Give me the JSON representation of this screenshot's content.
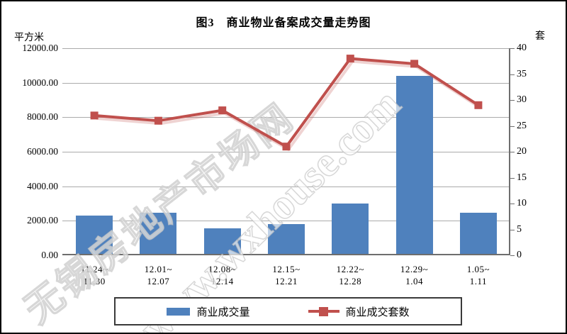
{
  "title": "图3　商业物业备案成交量走势图",
  "left_axis": {
    "unit": "平方米",
    "tick_labels": [
      "12000.00",
      "10000.00",
      "8000.00",
      "6000.00",
      "4000.00",
      "2000.00",
      "0.00"
    ],
    "min": 0,
    "max": 12000
  },
  "right_axis": {
    "unit": "套",
    "tick_labels": [
      "40",
      "35",
      "30",
      "25",
      "20",
      "15",
      "10",
      "5",
      "0"
    ],
    "min": 0,
    "max": 40
  },
  "legend": {
    "items": [
      {
        "label": "商业成交量",
        "type": "bar"
      },
      {
        "label": "商业成交套数",
        "type": "line"
      }
    ]
  },
  "watermark": {
    "text_cn": "无锡房地产市场网",
    "text_en": "www.wxhouse.com"
  },
  "colors": {
    "bar": "#4F81BD",
    "line": "#C0504D",
    "gridline": "#ABABAB",
    "axis": "#6E6E6E",
    "text": "#000000"
  },
  "chart_data": {
    "type": "bar+line",
    "categories": [
      "11.24~\n11.30",
      "12.01~\n12.07",
      "12.08~\n12.14",
      "12.15~\n12.21",
      "12.22~\n12.28",
      "12.29~\n1.04",
      "1.05~\n1.11"
    ],
    "series": [
      {
        "name": "商业成交量",
        "type": "bar",
        "axis": "left",
        "unit": "平方米",
        "color": "#4F81BD",
        "values": [
          2300,
          2450,
          1570,
          1800,
          3000,
          10400,
          2480
        ]
      },
      {
        "name": "商业成交套数",
        "type": "line",
        "axis": "right",
        "unit": "套",
        "color": "#C0504D",
        "values": [
          27,
          26,
          28,
          21,
          38,
          37,
          29
        ]
      }
    ],
    "left_ylim": [
      0,
      12000
    ],
    "right_ylim": [
      0,
      40
    ],
    "grid": true,
    "legend_position": "bottom"
  }
}
